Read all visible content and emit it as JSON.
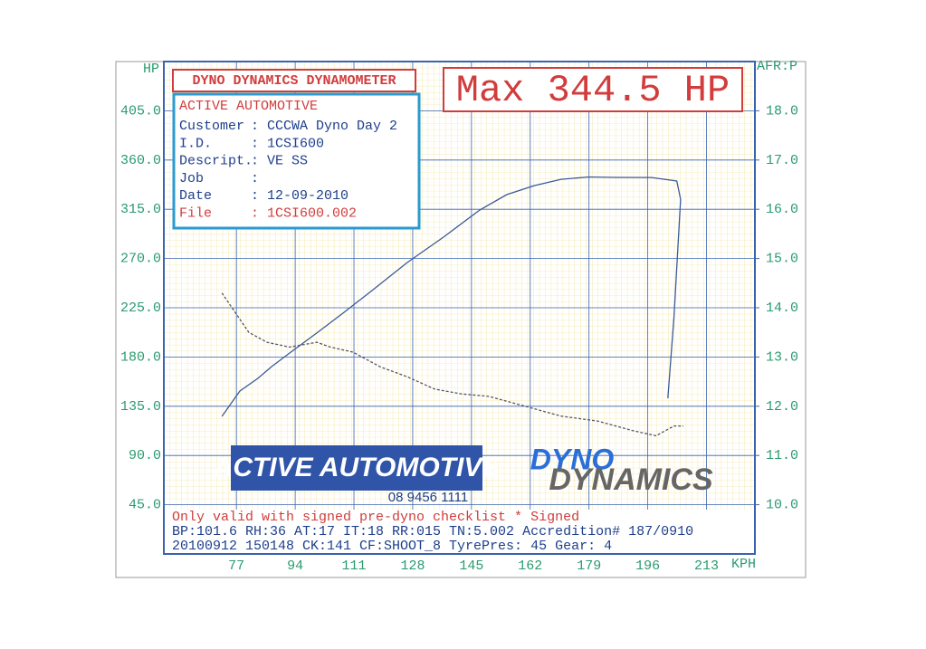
{
  "chart_data": {
    "type": "line",
    "header": "DYNO DYNAMICS DYNAMOMETER",
    "max_label": "Max 344.5 HP",
    "info_title": "ACTIVE AUTOMOTIVE",
    "info_rows": [
      [
        "Customer",
        ": CCCWA Dyno Day 2"
      ],
      [
        "I.D.",
        ": 1CSI600"
      ],
      [
        "Descript.",
        ": VE SS"
      ],
      [
        "Job",
        ":"
      ],
      [
        "Date",
        ": 12-09-2010"
      ],
      [
        "File",
        ": 1CSI600.002"
      ]
    ],
    "logo_text": "ACTIVE AUTOMOTIVE",
    "phone": "08 9456 1111",
    "logo2_top": "DYNO",
    "logo2_bottom": "DYNAMICS",
    "footer_lines": [
      "Only valid with signed pre-dyno checklist *  Signed",
      "BP:101.6 RH:36 AT:17 IT:18  RR:015 TN:5.002  Accredition# 187/0910",
      "20100912 150148 CK:141 CF:SHOOT_8  TyrePres: 45       Gear: 4"
    ],
    "ylabel": "HP",
    "y2label": "AFR:P",
    "xlabel": "KPH",
    "xlim": [
      56,
      227
    ],
    "xticks": [
      77,
      94,
      111,
      128,
      145,
      162,
      179,
      196,
      213
    ],
    "ylim": [
      0,
      450
    ],
    "yticks": [
      {
        "value": 45,
        "label": "45.0"
      },
      {
        "value": 90,
        "label": "90.0"
      },
      {
        "value": 135,
        "label": "135.0"
      },
      {
        "value": 180,
        "label": "180.0"
      },
      {
        "value": 225,
        "label": "225.0"
      },
      {
        "value": 270,
        "label": "270.0"
      },
      {
        "value": 315,
        "label": "315.0"
      },
      {
        "value": 360,
        "label": "360.0"
      },
      {
        "value": 405,
        "label": "405.0"
      }
    ],
    "y2lim": [
      9,
      19
    ],
    "y2ticks": [
      {
        "value": 10,
        "label": "10.0"
      },
      {
        "value": 11,
        "label": "11.0"
      },
      {
        "value": 12,
        "label": "12.0"
      },
      {
        "value": 13,
        "label": "13.0"
      },
      {
        "value": 14,
        "label": "14.0"
      },
      {
        "value": 15,
        "label": "15.0"
      },
      {
        "value": 16,
        "label": "16.0"
      },
      {
        "value": 17,
        "label": "17.0"
      },
      {
        "value": 18,
        "label": "18.0"
      }
    ],
    "grid": true,
    "series": [
      {
        "color": "#3a5a9a",
        "dashed": false,
        "x": [
          72.8,
          78.0,
          83.2,
          87.2,
          92.4,
          100.2,
          108.1,
          115.9,
          126.4,
          136.9,
          147.4,
          155.2,
          163.1,
          170.9,
          179.0,
          186.6,
          197.1,
          204.4,
          205.5,
          203.6,
          201.8
        ],
        "values": [
          125.7,
          148.9,
          160.5,
          171.2,
          183.6,
          201.8,
          220.8,
          239.9,
          266.3,
          289.5,
          314.3,
          328.4,
          336.6,
          342.4,
          344.5,
          344.1,
          344.0,
          340.8,
          324.0,
          216.7,
          142.3
        ]
      },
      {
        "color": "#555566",
        "dashed": true,
        "axis": "y2",
        "x": [
          72.8,
          76.7,
          80.6,
          85.8,
          92.4,
          100.2,
          104.2,
          110.7,
          118.6,
          126.4,
          134.3,
          142.1,
          150.0,
          160.5,
          170.9,
          181.4,
          191.9,
          198.4,
          203.6,
          206.3
        ],
        "values": [
          14.3,
          13.9,
          13.5,
          13.3,
          13.2,
          13.3,
          13.2,
          13.1,
          12.8,
          12.6,
          12.35,
          12.25,
          12.2,
          12.0,
          11.8,
          11.7,
          11.5,
          11.4,
          11.6,
          11.6
        ]
      }
    ]
  }
}
